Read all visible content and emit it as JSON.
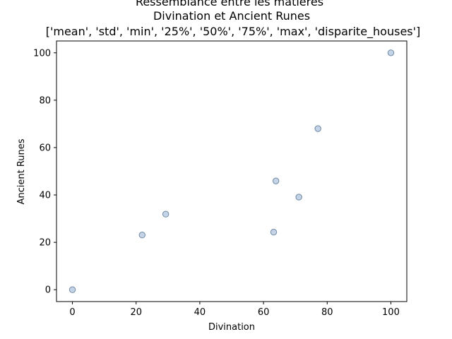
{
  "chart_data": {
    "type": "scatter",
    "title_lines": [
      "Ressemblance entre les matieres",
      "Divination et Ancient Runes",
      "['mean', 'std', 'min', '25%', '50%', '75%', 'max', 'disparite_houses']"
    ],
    "xlabel": "Divination",
    "ylabel": "Ancient Runes",
    "xlim": [
      -5,
      105
    ],
    "ylim": [
      -5,
      105
    ],
    "xticks": [
      0,
      20,
      40,
      60,
      80,
      100
    ],
    "yticks": [
      0,
      20,
      40,
      60,
      80,
      100
    ],
    "x": [
      0,
      21.9,
      29.3,
      63.2,
      63.9,
      71.1,
      77.1,
      100
    ],
    "y": [
      0,
      23.1,
      31.9,
      24.3,
      45.9,
      39.1,
      68.0,
      100
    ],
    "point_fill": "#b0c4de",
    "point_stroke": "#4a6a8a",
    "point_opacity": 0.75
  }
}
